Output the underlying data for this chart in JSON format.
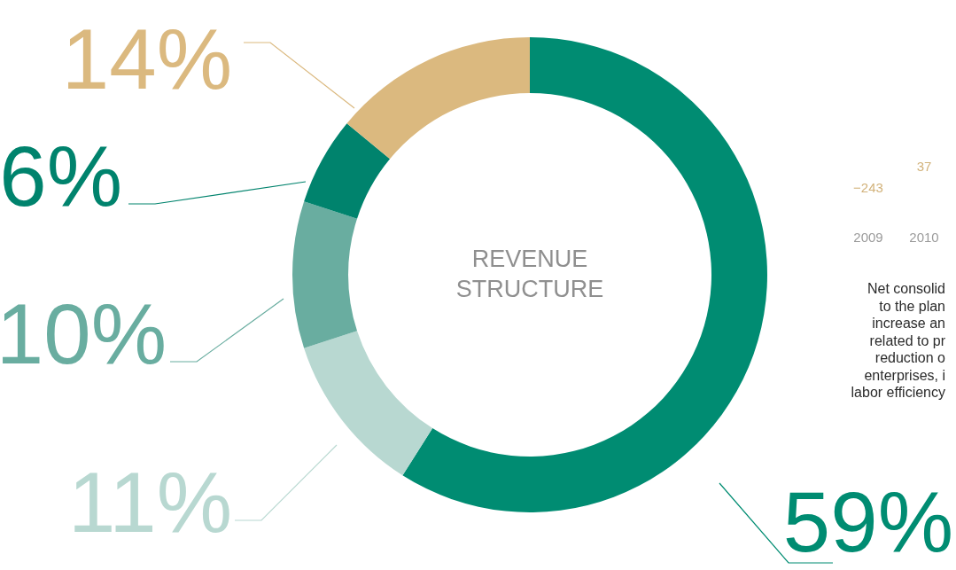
{
  "chart_data": [
    {
      "type": "donut",
      "title": "REVENUE STRUCTURE",
      "categories": [
        null,
        null,
        null,
        null,
        null
      ],
      "values": [
        59,
        11,
        10,
        6,
        14
      ],
      "colors": [
        "#008c72",
        "#b8d8d1",
        "#69ada0",
        "#00836d",
        "#dbb97f"
      ],
      "value_labels": [
        "59%",
        "11%",
        "10%",
        "6%",
        "14%"
      ]
    },
    {
      "type": "other",
      "annotations": [
        "−243",
        "37",
        "2009",
        "2010",
        "Net consolid",
        "to the plan",
        "increase an",
        "related to pr",
        "reduction o",
        "enterprises, i",
        "labor efficiency"
      ]
    }
  ]
}
